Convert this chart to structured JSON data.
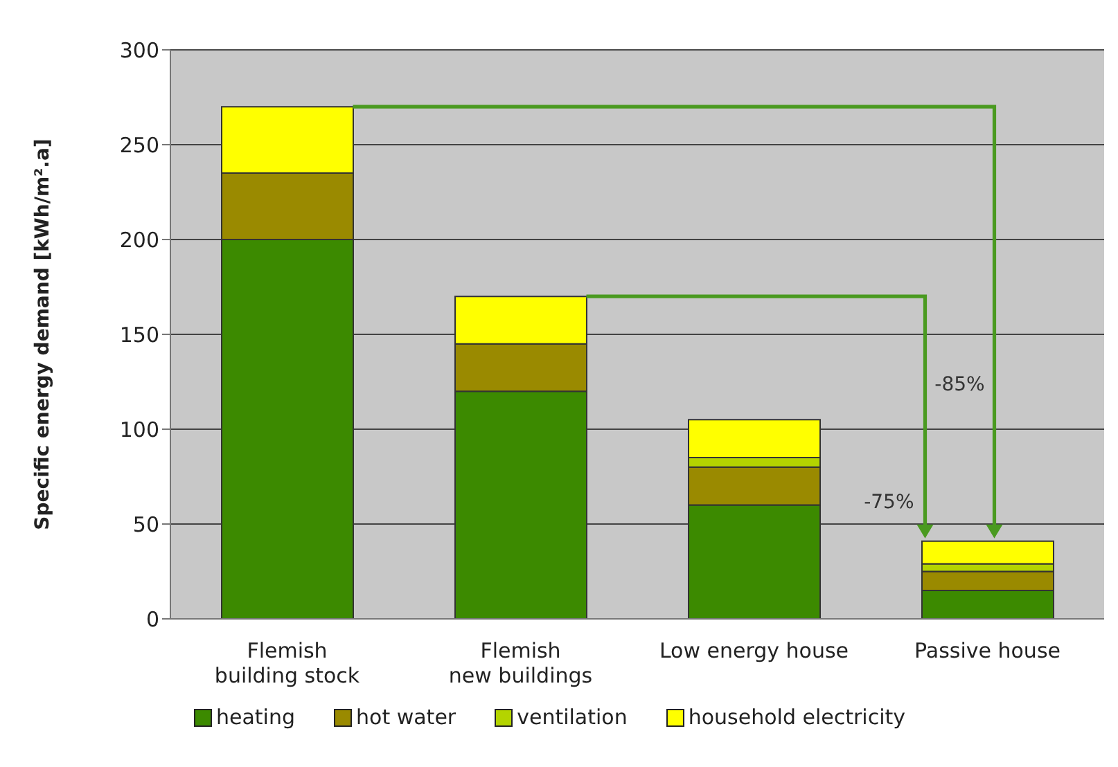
{
  "chart_data": {
    "type": "bar",
    "stacked": true,
    "ylabel": "Specific energy demand [kWh/m².a]",
    "categories": [
      "Flemish\nbuilding stock",
      "Flemish\nnew buildings",
      "Low energy house",
      "Passive house"
    ],
    "series": [
      {
        "name": "heating",
        "color": "#3c8a00",
        "values": [
          200,
          120,
          60,
          15
        ]
      },
      {
        "name": "hot water",
        "color": "#9a8a00",
        "values": [
          35,
          25,
          20,
          10
        ]
      },
      {
        "name": "ventilation",
        "color": "#b4d400",
        "values": [
          0,
          0,
          5,
          4
        ]
      },
      {
        "name": "household electricity",
        "color": "#ffff00",
        "values": [
          35,
          25,
          20,
          12
        ]
      }
    ],
    "ylim": [
      0,
      300
    ],
    "yticks": [
      0,
      50,
      100,
      150,
      200,
      250,
      300
    ],
    "grid": "y",
    "legend": "bottom",
    "annotations": [
      "-85%",
      "-75%"
    ]
  }
}
